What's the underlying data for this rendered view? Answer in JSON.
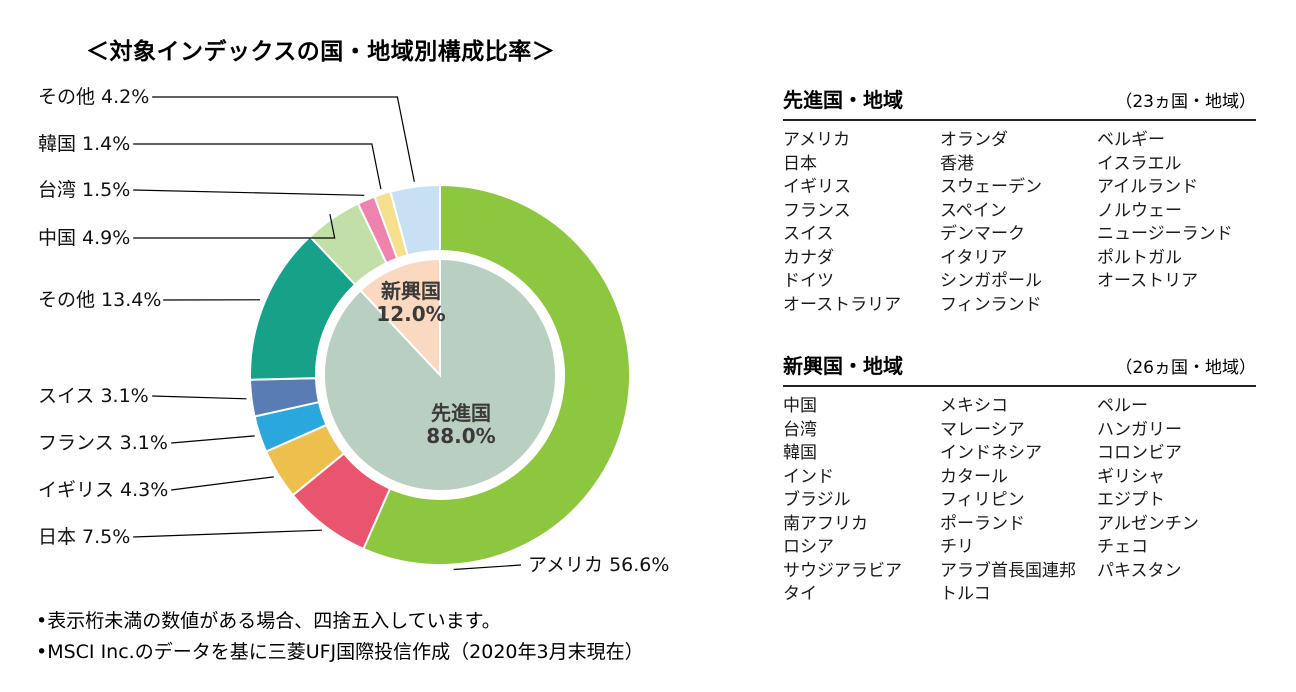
{
  "page": {
    "title": "＜対象インデックスの国・地域別構成比率＞",
    "footnotes": [
      "•表示桁未満の数値がある場合、四捨五入しています。",
      "•MSCI Inc.のデータを基に三菱UFJ国際投信作成（2020年3月末現在）"
    ]
  },
  "chart_data": {
    "type": "pie",
    "title": "対象インデックスの国・地域別構成比率",
    "units": "%",
    "inner_ring": [
      {
        "label": "先進国",
        "value": 88.0,
        "color": "#b9cfc2"
      },
      {
        "label": "新興国",
        "value": 12.0,
        "color": "#fad9c0"
      }
    ],
    "outer_ring": [
      {
        "label": "アメリカ",
        "value": 56.6,
        "color": "#8dc63f",
        "group": "先進国"
      },
      {
        "label": "日本",
        "value": 7.5,
        "color": "#e9546f",
        "group": "先進国"
      },
      {
        "label": "イギリス",
        "value": 4.3,
        "color": "#edc04e",
        "group": "先進国"
      },
      {
        "label": "フランス",
        "value": 3.1,
        "color": "#2aa8dd",
        "group": "先進国"
      },
      {
        "label": "スイス",
        "value": 3.1,
        "color": "#5a7cb5",
        "group": "先進国"
      },
      {
        "label": "その他",
        "value": 13.4,
        "color": "#15a288",
        "group": "先進国"
      },
      {
        "label": "中国",
        "value": 4.9,
        "color": "#c1dfa6",
        "group": "新興国"
      },
      {
        "label": "台湾",
        "value": 1.5,
        "color": "#f083ae",
        "group": "新興国"
      },
      {
        "label": "韓国",
        "value": 1.4,
        "color": "#f5e08e",
        "group": "新興国"
      },
      {
        "label": "その他",
        "value": 4.2,
        "color": "#c8e0f4",
        "group": "新興国"
      }
    ]
  },
  "tables": {
    "developed": {
      "title": "先進国・地域",
      "count_label": "（23ヵ国・地域）",
      "columns": [
        [
          "アメリカ",
          "日本",
          "イギリス",
          "フランス",
          "スイス",
          "カナダ",
          "ドイツ",
          "オーストラリア"
        ],
        [
          "オランダ",
          "香港",
          "スウェーデン",
          "スペイン",
          "デンマーク",
          "イタリア",
          "シンガポール",
          "フィンランド"
        ],
        [
          "ベルギー",
          "イスラエル",
          "アイルランド",
          "ノルウェー",
          "ニュージーランド",
          "ポルトガル",
          "オーストリア"
        ]
      ]
    },
    "emerging": {
      "title": "新興国・地域",
      "count_label": "（26ヵ国・地域）",
      "columns": [
        [
          "中国",
          "台湾",
          "韓国",
          "インド",
          "ブラジル",
          "南アフリカ",
          "ロシア",
          "サウジアラビア",
          "タイ"
        ],
        [
          "メキシコ",
          "マレーシア",
          "インドネシア",
          "カタール",
          "フィリピン",
          "ポーランド",
          "チリ",
          "アラブ首長国連邦",
          "トルコ"
        ],
        [
          "ペルー",
          "ハンガリー",
          "コロンビア",
          "ギリシャ",
          "エジプト",
          "アルゼンチン",
          "チェコ",
          "パキスタン"
        ]
      ]
    }
  }
}
